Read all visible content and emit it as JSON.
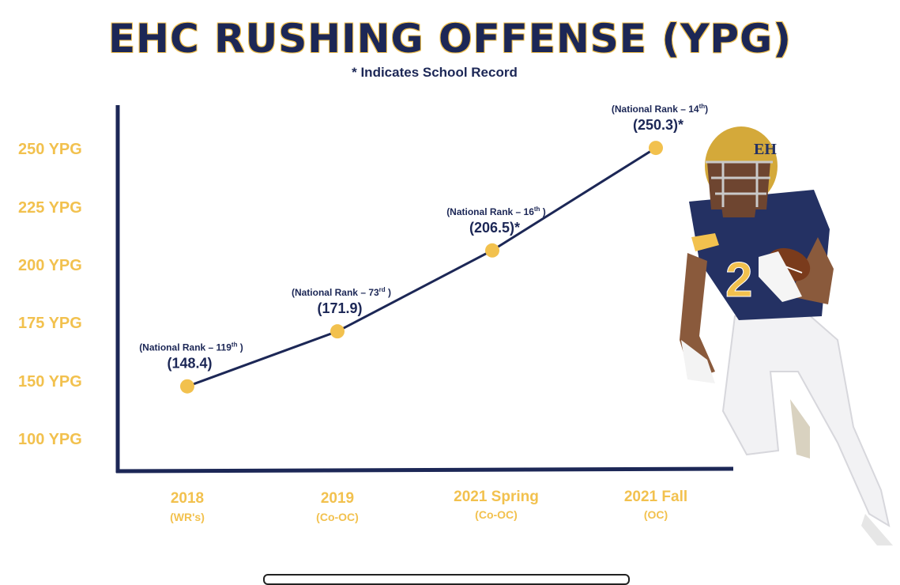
{
  "title": "EHC RUSHING OFFENSE (YPG)",
  "subtitle": "* Indicates School Record",
  "colors": {
    "navy": "#1c2756",
    "gold": "#f2c14e"
  },
  "chart_data": {
    "type": "line",
    "y_tick_labels": [
      "250 YPG",
      "225 YPG",
      "200 YPG",
      "175 YPG",
      "150 YPG",
      "100 YPG"
    ],
    "categories": [
      "2018",
      "2019",
      "2021 Spring",
      "2021 Fall"
    ],
    "category_roles": [
      "(WR's)",
      "(Co-OC)",
      "(Co-OC)",
      "(OC)"
    ],
    "values": [
      148.4,
      171.9,
      206.5,
      250.3
    ],
    "value_labels": [
      "(148.4)",
      "(171.9)",
      "(206.5)*",
      "(250.3)*"
    ],
    "rank_prefix": [
      "(National Rank – 119",
      "(National Rank – 73",
      "(National Rank – 16",
      "(National Rank – 14"
    ],
    "rank_suffix": [
      "th",
      "rd",
      "th",
      "th"
    ],
    "rank_close": [
      " )",
      " )",
      " )",
      ")"
    ],
    "school_record": [
      false,
      false,
      true,
      true
    ],
    "grid": false
  },
  "image": {
    "player_icon": "football-player-photo"
  }
}
